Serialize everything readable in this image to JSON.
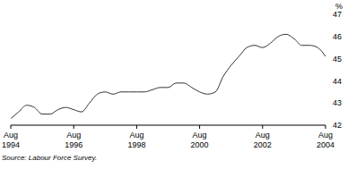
{
  "chart_data": {
    "type": "line",
    "ylabel": "%",
    "annotation": "Source: Labour Force Survey.",
    "categories": [
      "Aug 1994",
      null,
      null,
      null,
      null,
      null,
      null,
      null,
      "Aug 1996",
      null,
      null,
      null,
      null,
      null,
      null,
      null,
      "Aug 1998",
      null,
      null,
      null,
      null,
      null,
      null,
      null,
      "Aug 2000",
      null,
      null,
      null,
      null,
      null,
      null,
      null,
      "Aug 2002",
      null,
      null,
      null,
      null,
      null,
      null,
      null,
      "Aug 2004"
    ],
    "values": [
      42.3,
      42.6,
      42.9,
      42.8,
      42.5,
      42.5,
      42.7,
      42.8,
      42.7,
      42.6,
      43.0,
      43.4,
      43.5,
      43.4,
      43.5,
      43.5,
      43.5,
      43.5,
      43.6,
      43.7,
      43.7,
      43.9,
      43.9,
      43.7,
      43.5,
      43.4,
      43.5,
      44.2,
      44.7,
      45.1,
      45.5,
      45.6,
      45.5,
      45.7,
      46.0,
      46.1,
      45.9,
      45.6,
      45.6,
      45.5,
      45.1
    ],
    "color": "#333333",
    "ylim": [
      42,
      47
    ],
    "yticks": [
      42,
      43,
      44,
      45,
      46,
      47
    ],
    "grid": false,
    "legend": "none"
  }
}
